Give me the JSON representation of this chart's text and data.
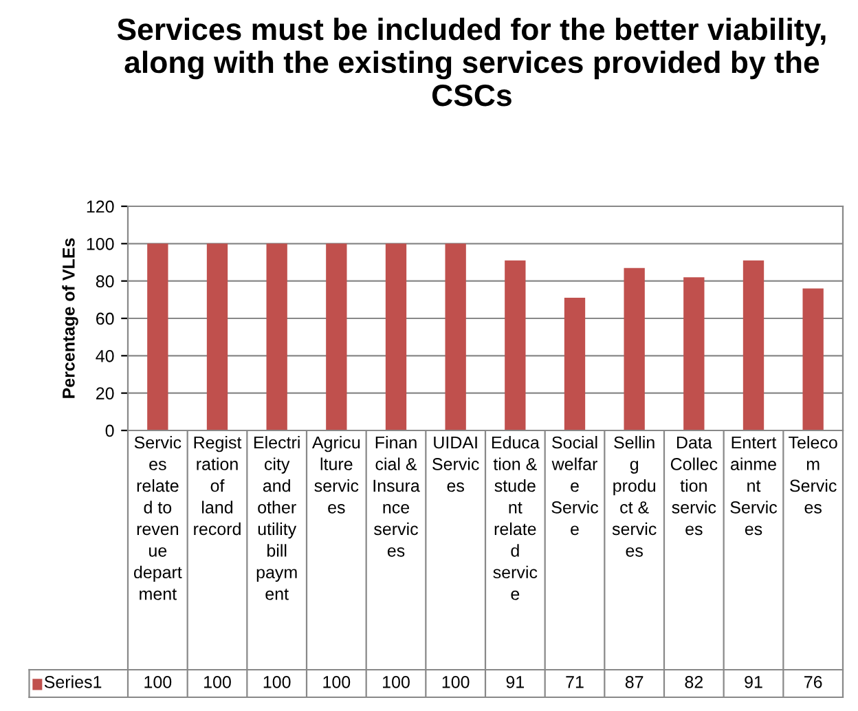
{
  "chart_data": {
    "type": "bar",
    "title": "Services must be included for the better viability, along with the existing services provided by the CSCs",
    "ylabel": "Percentage of VLEs",
    "categories": [
      "Services related to revenue department",
      "Registration of land record",
      "Electricity and other utility bill payment",
      "Agriculture services",
      "Financial & Insurance services",
      "UIDAI Services",
      "Education & student related service",
      "Social welfare Service",
      "Selling product & services",
      "Data Collection services",
      "Entertainment Services",
      "Telecom Services"
    ],
    "series": [
      {
        "name": "Series1",
        "color": "#c0504d",
        "values": [
          100,
          100,
          100,
          100,
          100,
          100,
          91,
          71,
          87,
          82,
          91,
          76
        ]
      }
    ],
    "ylim": [
      0,
      120
    ],
    "yticks": [
      0,
      20,
      40,
      60,
      80,
      100,
      120
    ],
    "grid": "y",
    "legend": "bottom",
    "data_labels": true
  }
}
